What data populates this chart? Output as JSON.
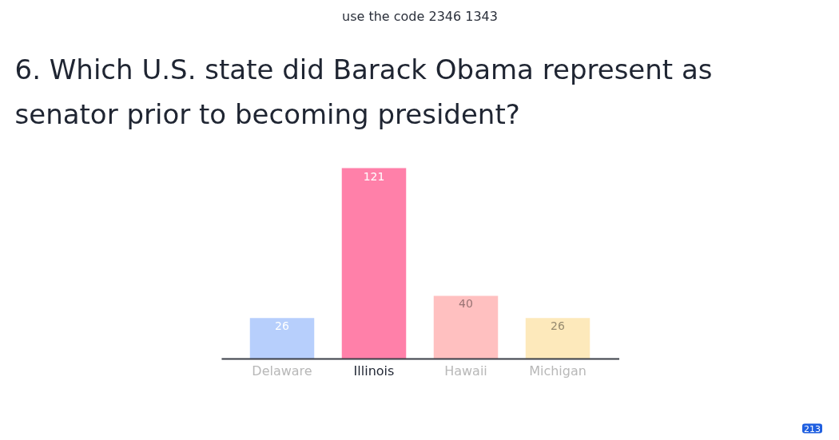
{
  "chart_data": {
    "type": "bar",
    "title": "6. Which U.S. state did Barack Obama represent as senator prior to becoming president?",
    "subtitle": "use the code 2346 1343",
    "categories": [
      "Delaware",
      "Illinois",
      "Hawaii",
      "Michigan"
    ],
    "values": [
      26,
      121,
      40,
      26
    ],
    "colors": [
      "#b7cffc",
      "#ff80a9",
      "#ffc0c0",
      "#fde9bb"
    ],
    "data_labels": true,
    "grid": false,
    "annotations": [
      "213"
    ]
  }
}
